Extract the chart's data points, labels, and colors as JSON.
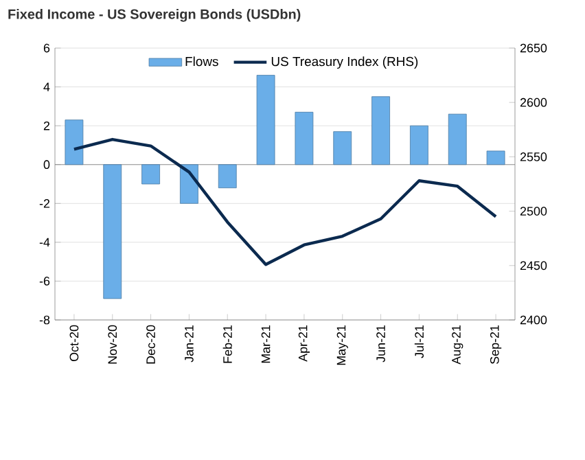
{
  "chart_data": {
    "type": "bar",
    "title": "Fixed Income - US Sovereign Bonds (USDbn)",
    "categories": [
      "Oct-20",
      "Nov-20",
      "Dec-20",
      "Jan-21",
      "Feb-21",
      "Mar-21",
      "Apr-21",
      "May-21",
      "Jun-21",
      "Jul-21",
      "Aug-21",
      "Sep-21"
    ],
    "series": [
      {
        "name": "Flows",
        "color": "#6aaee8",
        "values": [
          2.3,
          -6.9,
          -1.0,
          -2.0,
          -1.2,
          4.6,
          2.7,
          1.7,
          3.5,
          2.0,
          2.6,
          0.7
        ]
      },
      {
        "name": "US Treasury Index (RHS)",
        "type": "line",
        "axis": "y2",
        "color": "#0b2a4f",
        "values": [
          2557,
          2566,
          2560,
          2536,
          2490,
          2451,
          2469,
          2477,
          2493,
          2528,
          2523,
          2495
        ]
      }
    ],
    "ylim": [
      -8,
      6
    ],
    "yticks": [
      -8,
      -6,
      -4,
      -2,
      0,
      2,
      4,
      6
    ],
    "y2lim": [
      2400,
      2650
    ],
    "y2ticks": [
      2400,
      2450,
      2500,
      2550,
      2600,
      2650
    ],
    "grid": "y",
    "legend": "top",
    "marker": "none",
    "line_style": "solid"
  }
}
